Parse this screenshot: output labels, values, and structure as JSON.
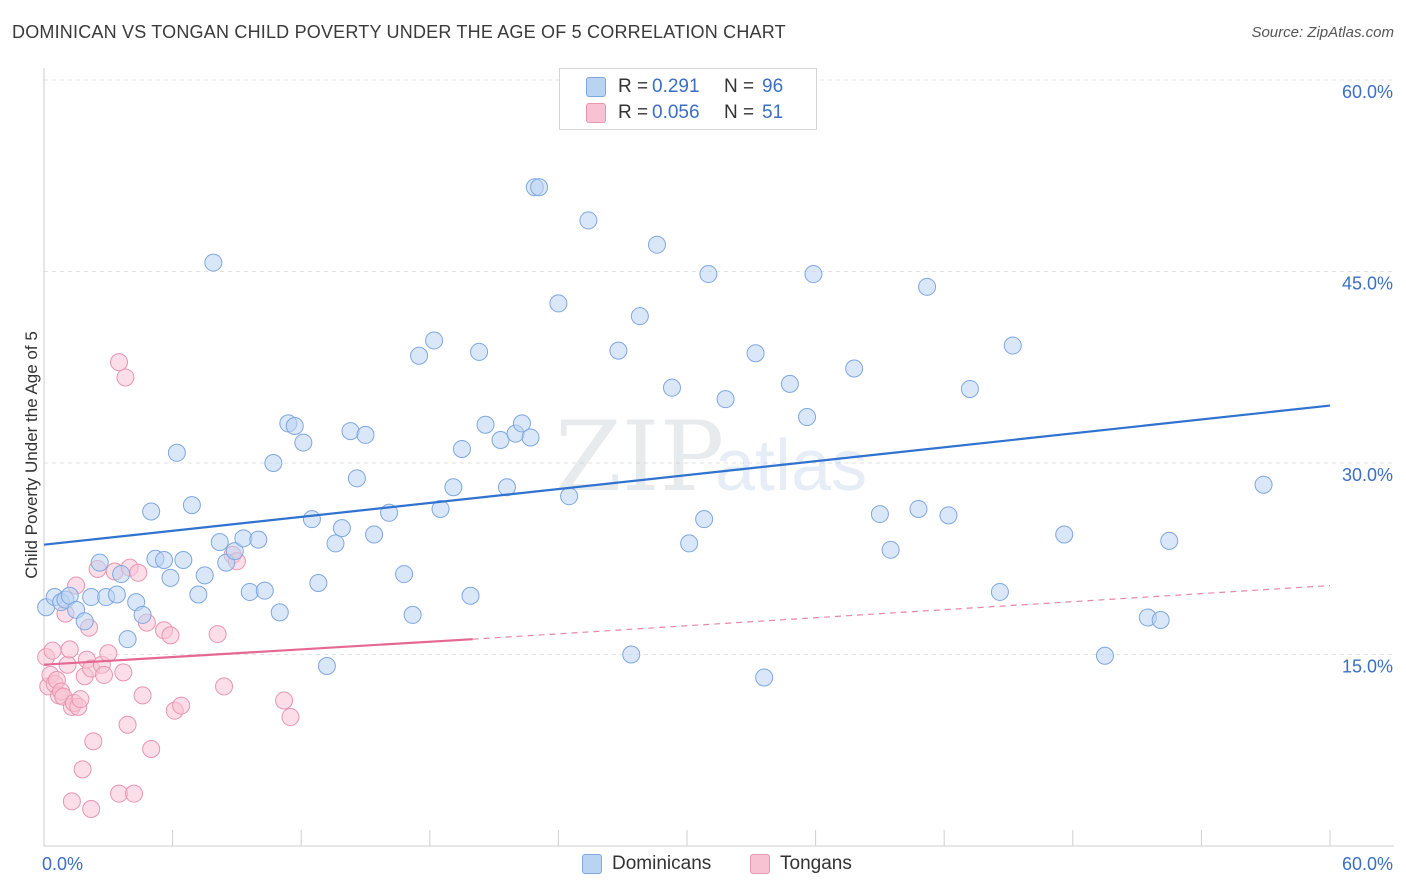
{
  "title": "DOMINICAN VS TONGAN CHILD POVERTY UNDER THE AGE OF 5 CORRELATION CHART",
  "source": "Source: ZipAtlas.com",
  "watermark": {
    "zip": "ZIP",
    "atlas": "atlas"
  },
  "legend": {
    "r_label": "R =",
    "n_label": "N =",
    "rows": [
      {
        "r": "0.291",
        "n": "96"
      },
      {
        "r": "0.056",
        "n": "51"
      }
    ]
  },
  "colors": {
    "blue_fill": "#b9d3f2",
    "blue_stroke": "#7fa7df",
    "blue_line": "#2f72cf",
    "pink_fill": "#f7c3d3",
    "pink_stroke": "#e895b0",
    "pink_line": "#e46891",
    "axis_label": "#3a6fc4",
    "grid": "#e2e2e2"
  },
  "chart_data": {
    "type": "scatter",
    "title": "DOMINICAN VS TONGAN CHILD POVERTY UNDER THE AGE OF 5 CORRELATION CHART",
    "xlabel": "",
    "ylabel": "Child Poverty Under the Age of 5",
    "xlim": [
      0,
      60
    ],
    "ylim": [
      0,
      60
    ],
    "x_tick_labels": [
      "0.0%",
      "60.0%"
    ],
    "y_tick_labels": [
      "15.0%",
      "30.0%",
      "45.0%",
      "60.0%"
    ],
    "y_ticks": [
      15,
      30,
      45,
      60
    ],
    "grid": true,
    "legend_position": "top-center and bottom",
    "series": [
      {
        "name": "Dominicans",
        "r": 0.291,
        "n": 96,
        "trend": {
          "x0": 0,
          "y0": 23.6,
          "x1": 60,
          "y1": 34.5
        },
        "points": [
          [
            0.1,
            18.7
          ],
          [
            0.5,
            19.5
          ],
          [
            0.8,
            19.1
          ],
          [
            1.0,
            19.3
          ],
          [
            1.2,
            19.6
          ],
          [
            1.5,
            18.5
          ],
          [
            1.9,
            17.6
          ],
          [
            2.2,
            19.5
          ],
          [
            2.6,
            22.2
          ],
          [
            2.9,
            19.5
          ],
          [
            3.4,
            19.7
          ],
          [
            3.6,
            21.3
          ],
          [
            3.9,
            16.2
          ],
          [
            4.3,
            19.1
          ],
          [
            4.6,
            18.1
          ],
          [
            5.0,
            26.2
          ],
          [
            5.2,
            22.5
          ],
          [
            5.6,
            22.4
          ],
          [
            5.9,
            21.0
          ],
          [
            6.2,
            30.8
          ],
          [
            6.5,
            22.4
          ],
          [
            6.9,
            26.7
          ],
          [
            7.2,
            19.7
          ],
          [
            7.5,
            21.2
          ],
          [
            7.9,
            45.7
          ],
          [
            8.2,
            23.8
          ],
          [
            8.5,
            22.2
          ],
          [
            8.9,
            23.1
          ],
          [
            9.3,
            24.1
          ],
          [
            9.6,
            19.9
          ],
          [
            10.0,
            24.0
          ],
          [
            10.3,
            20.0
          ],
          [
            10.7,
            30.0
          ],
          [
            11.0,
            18.3
          ],
          [
            11.4,
            33.1
          ],
          [
            11.7,
            32.9
          ],
          [
            12.1,
            31.6
          ],
          [
            12.5,
            25.6
          ],
          [
            12.8,
            20.6
          ],
          [
            13.2,
            14.1
          ],
          [
            13.6,
            23.7
          ],
          [
            13.9,
            24.9
          ],
          [
            14.3,
            32.5
          ],
          [
            14.6,
            28.8
          ],
          [
            15.0,
            32.2
          ],
          [
            15.4,
            24.4
          ],
          [
            16.1,
            26.1
          ],
          [
            16.8,
            21.3
          ],
          [
            17.2,
            18.1
          ],
          [
            17.5,
            38.4
          ],
          [
            18.2,
            39.6
          ],
          [
            18.5,
            26.4
          ],
          [
            19.1,
            28.1
          ],
          [
            19.5,
            31.1
          ],
          [
            19.9,
            19.6
          ],
          [
            20.3,
            38.7
          ],
          [
            20.6,
            33.0
          ],
          [
            21.3,
            31.8
          ],
          [
            21.6,
            28.1
          ],
          [
            22.0,
            32.3
          ],
          [
            22.3,
            33.1
          ],
          [
            22.7,
            32.0
          ],
          [
            22.9,
            51.6
          ],
          [
            23.1,
            51.6
          ],
          [
            24.0,
            42.5
          ],
          [
            24.5,
            27.4
          ],
          [
            25.4,
            49.0
          ],
          [
            26.8,
            38.8
          ],
          [
            27.4,
            15.0
          ],
          [
            27.8,
            41.5
          ],
          [
            28.6,
            47.1
          ],
          [
            29.3,
            35.9
          ],
          [
            30.1,
            23.7
          ],
          [
            30.8,
            25.6
          ],
          [
            31.0,
            44.8
          ],
          [
            31.8,
            35.0
          ],
          [
            33.2,
            38.6
          ],
          [
            33.6,
            13.2
          ],
          [
            34.8,
            36.2
          ],
          [
            35.6,
            33.6
          ],
          [
            35.9,
            44.8
          ],
          [
            37.8,
            37.4
          ],
          [
            39.0,
            26.0
          ],
          [
            39.5,
            23.2
          ],
          [
            40.8,
            26.4
          ],
          [
            41.2,
            43.8
          ],
          [
            42.2,
            25.9
          ],
          [
            43.2,
            35.8
          ],
          [
            44.6,
            19.9
          ],
          [
            45.2,
            39.2
          ],
          [
            47.6,
            24.4
          ],
          [
            49.5,
            14.9
          ],
          [
            51.5,
            17.9
          ],
          [
            52.1,
            17.7
          ],
          [
            52.5,
            23.9
          ],
          [
            56.9,
            28.3
          ]
        ]
      },
      {
        "name": "Tongans",
        "r": 0.056,
        "n": 51,
        "trend": {
          "x0": 0,
          "y0": 14.2,
          "x1": 20,
          "y1": 16.2
        },
        "trend_extension": {
          "x0": 20,
          "y0": 16.2,
          "x1": 60,
          "y1": 20.4
        },
        "points": [
          [
            0.1,
            14.8
          ],
          [
            0.2,
            12.5
          ],
          [
            0.3,
            13.4
          ],
          [
            0.4,
            15.3
          ],
          [
            0.5,
            12.7
          ],
          [
            0.6,
            13.0
          ],
          [
            0.7,
            11.8
          ],
          [
            0.8,
            12.1
          ],
          [
            0.9,
            11.7
          ],
          [
            1.0,
            18.2
          ],
          [
            1.1,
            14.2
          ],
          [
            1.2,
            15.4
          ],
          [
            1.3,
            10.9
          ],
          [
            1.4,
            11.2
          ],
          [
            1.5,
            20.4
          ],
          [
            1.6,
            10.9
          ],
          [
            1.7,
            11.5
          ],
          [
            1.8,
            6.0
          ],
          [
            1.9,
            13.3
          ],
          [
            2.0,
            14.6
          ],
          [
            2.1,
            17.1
          ],
          [
            2.2,
            13.9
          ],
          [
            2.3,
            8.2
          ],
          [
            2.5,
            21.7
          ],
          [
            2.7,
            14.2
          ],
          [
            2.8,
            13.4
          ],
          [
            3.0,
            15.1
          ],
          [
            3.3,
            21.5
          ],
          [
            3.5,
            4.1
          ],
          [
            3.7,
            13.6
          ],
          [
            3.8,
            36.7
          ],
          [
            3.9,
            9.5
          ],
          [
            4.0,
            21.8
          ],
          [
            4.2,
            4.1
          ],
          [
            4.4,
            21.4
          ],
          [
            4.6,
            11.8
          ],
          [
            4.8,
            17.5
          ],
          [
            5.0,
            7.6
          ],
          [
            5.6,
            16.9
          ],
          [
            5.9,
            16.5
          ],
          [
            6.1,
            10.6
          ],
          [
            6.4,
            11.0
          ],
          [
            8.1,
            16.6
          ],
          [
            8.4,
            12.5
          ],
          [
            8.8,
            22.8
          ],
          [
            9.0,
            22.3
          ],
          [
            11.2,
            11.4
          ],
          [
            11.5,
            10.1
          ],
          [
            3.5,
            37.9
          ],
          [
            1.3,
            3.5
          ],
          [
            2.2,
            2.9
          ]
        ]
      }
    ]
  },
  "bottom_legend": [
    {
      "label": "Dominicans"
    },
    {
      "label": "Tongans"
    }
  ]
}
